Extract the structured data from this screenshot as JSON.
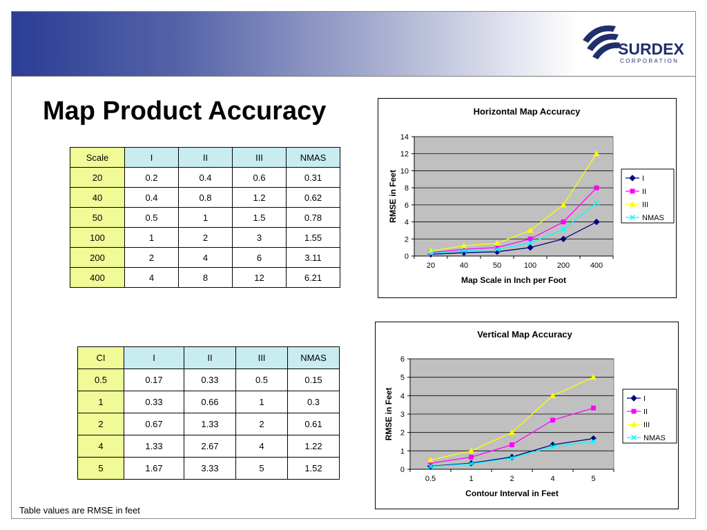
{
  "page": {
    "title": "Map Product Accuracy",
    "footnote": "Table values are RMSE in feet"
  },
  "logo": {
    "name": "SURDEX",
    "subtitle": "CORPORATION"
  },
  "tables": {
    "horizontal": {
      "headers": [
        "Scale",
        "I",
        "II",
        "III",
        "NMAS"
      ],
      "rows": [
        [
          "20",
          "0.2",
          "0.4",
          "0.6",
          "0.31"
        ],
        [
          "40",
          "0.4",
          "0.8",
          "1.2",
          "0.62"
        ],
        [
          "50",
          "0.5",
          "1",
          "1.5",
          "0.78"
        ],
        [
          "100",
          "1",
          "2",
          "3",
          "1.55"
        ],
        [
          "200",
          "2",
          "4",
          "6",
          "3.11"
        ],
        [
          "400",
          "4",
          "8",
          "12",
          "6.21"
        ]
      ]
    },
    "vertical": {
      "headers": [
        "CI",
        "I",
        "II",
        "III",
        "NMAS"
      ],
      "rows": [
        [
          "0.5",
          "0.17",
          "0.33",
          "0.5",
          "0.15"
        ],
        [
          "1",
          "0.33",
          "0.66",
          "1",
          "0.3"
        ],
        [
          "2",
          "0.67",
          "1.33",
          "2",
          "0.61"
        ],
        [
          "4",
          "1.33",
          "2.67",
          "4",
          "1.22"
        ],
        [
          "5",
          "1.67",
          "3.33",
          "5",
          "1.52"
        ]
      ]
    }
  },
  "colors": {
    "banner_start": "#2b3d96",
    "plot_bg": "#c0c0c0",
    "series_I": "#000080",
    "series_II": "#ff00ff",
    "series_III": "#ffff00",
    "series_NMAS": "#00ffff",
    "table_first_col": "#f0fa96",
    "table_header": "#c8ecf0"
  },
  "chart_data": [
    {
      "type": "line",
      "title": "Horizontal Map Accuracy",
      "xlabel": "Map Scale in Inch per Foot",
      "ylabel": "RMSE in Feet",
      "categories": [
        "20",
        "40",
        "50",
        "100",
        "200",
        "400"
      ],
      "ylim": [
        0,
        14
      ],
      "yticks": [
        0,
        2,
        4,
        6,
        8,
        10,
        12,
        14
      ],
      "grid": true,
      "legend": "right",
      "series": [
        {
          "name": "I",
          "marker": "diamond",
          "color": "#000080",
          "values": [
            0.2,
            0.4,
            0.5,
            1,
            2,
            4
          ]
        },
        {
          "name": "II",
          "marker": "square",
          "color": "#ff00ff",
          "values": [
            0.4,
            0.8,
            1,
            2,
            4,
            8
          ]
        },
        {
          "name": "III",
          "marker": "triangle",
          "color": "#ffff00",
          "values": [
            0.6,
            1.2,
            1.5,
            3,
            6,
            12
          ]
        },
        {
          "name": "NMAS",
          "marker": "x",
          "color": "#00ffff",
          "values": [
            0.31,
            0.62,
            0.78,
            1.55,
            3.11,
            6.21
          ]
        }
      ]
    },
    {
      "type": "line",
      "title": "Vertical Map Accuracy",
      "xlabel": "Contour Interval in Feet",
      "ylabel": "RMSE in Feet",
      "categories": [
        "0.5",
        "1",
        "2",
        "4",
        "5"
      ],
      "ylim": [
        0,
        6
      ],
      "yticks": [
        0,
        1,
        2,
        3,
        4,
        5,
        6
      ],
      "grid": true,
      "legend": "right",
      "series": [
        {
          "name": "I",
          "marker": "diamond",
          "color": "#000080",
          "values": [
            0.17,
            0.33,
            0.67,
            1.33,
            1.67
          ]
        },
        {
          "name": "II",
          "marker": "square",
          "color": "#ff00ff",
          "values": [
            0.33,
            0.66,
            1.33,
            2.67,
            3.33
          ]
        },
        {
          "name": "III",
          "marker": "triangle",
          "color": "#ffff00",
          "values": [
            0.5,
            1,
            2,
            4,
            5
          ]
        },
        {
          "name": "NMAS",
          "marker": "x",
          "color": "#00ffff",
          "values": [
            0.15,
            0.3,
            0.61,
            1.22,
            1.52
          ]
        }
      ]
    }
  ]
}
